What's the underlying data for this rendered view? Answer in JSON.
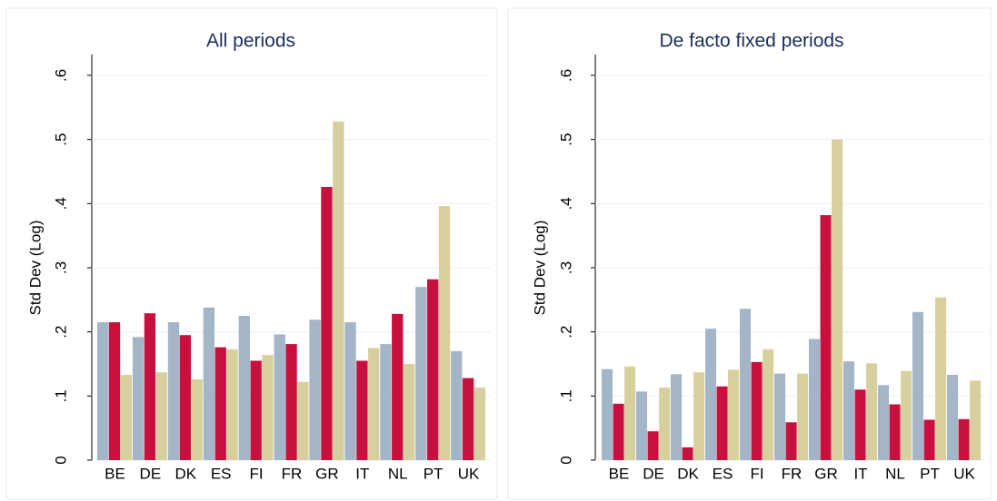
{
  "chart_data": [
    {
      "type": "bar",
      "title": "All periods",
      "y_label": "Std Dev (Log)",
      "categories": [
        "BE",
        "DE",
        "DK",
        "ES",
        "FI",
        "FR",
        "GR",
        "IT",
        "NL",
        "PT",
        "UK"
      ],
      "series": [
        {
          "color": "#a3b5c7",
          "values": [
            0.215,
            0.192,
            0.215,
            0.238,
            0.225,
            0.196,
            0.219,
            0.215,
            0.181,
            0.27,
            0.17
          ]
        },
        {
          "color": "#c8103e",
          "values": [
            0.215,
            0.229,
            0.195,
            0.176,
            0.155,
            0.181,
            0.426,
            0.155,
            0.228,
            0.282,
            0.128
          ]
        },
        {
          "color": "#d7d09e",
          "values": [
            0.133,
            0.137,
            0.126,
            0.173,
            0.164,
            0.122,
            0.528,
            0.175,
            0.15,
            0.396,
            0.113
          ]
        }
      ],
      "ylim": [
        0,
        0.6
      ],
      "yticks": [
        0,
        {
          "value": 0.1,
          "label": ".1"
        },
        {
          "value": 0.2,
          "label": ".2"
        },
        {
          "value": 0.3,
          "label": ".3"
        },
        {
          "value": 0.4,
          "label": ".4"
        },
        {
          "value": 0.5,
          "label": ".5"
        },
        {
          "value": 0.6,
          "label": ".6"
        }
      ],
      "grid": true
    },
    {
      "type": "bar",
      "title": "De facto fixed periods",
      "y_label": "Std Dev (Log)",
      "categories": [
        "BE",
        "DE",
        "DK",
        "ES",
        "FI",
        "FR",
        "GR",
        "IT",
        "NL",
        "PT",
        "UK"
      ],
      "series": [
        {
          "color": "#a3b5c7",
          "values": [
            0.142,
            0.107,
            0.134,
            0.205,
            0.236,
            0.135,
            0.189,
            0.154,
            0.117,
            0.231,
            0.133
          ]
        },
        {
          "color": "#c8103e",
          "values": [
            0.088,
            0.045,
            0.02,
            0.115,
            0.153,
            0.059,
            0.382,
            0.11,
            0.087,
            0.063,
            0.064
          ]
        },
        {
          "color": "#d7d09e",
          "values": [
            0.146,
            0.113,
            0.137,
            0.141,
            0.173,
            0.135,
            0.5,
            0.151,
            0.139,
            0.254,
            0.124
          ]
        }
      ],
      "ylim": [
        0,
        0.6
      ],
      "yticks": [
        0,
        {
          "value": 0.1,
          "label": ".1"
        },
        {
          "value": 0.2,
          "label": ".2"
        },
        {
          "value": 0.3,
          "label": ".3"
        },
        {
          "value": 0.4,
          "label": ".4"
        },
        {
          "value": 0.5,
          "label": ".5"
        },
        {
          "value": 0.6,
          "label": ".6"
        }
      ],
      "grid": true
    }
  ]
}
